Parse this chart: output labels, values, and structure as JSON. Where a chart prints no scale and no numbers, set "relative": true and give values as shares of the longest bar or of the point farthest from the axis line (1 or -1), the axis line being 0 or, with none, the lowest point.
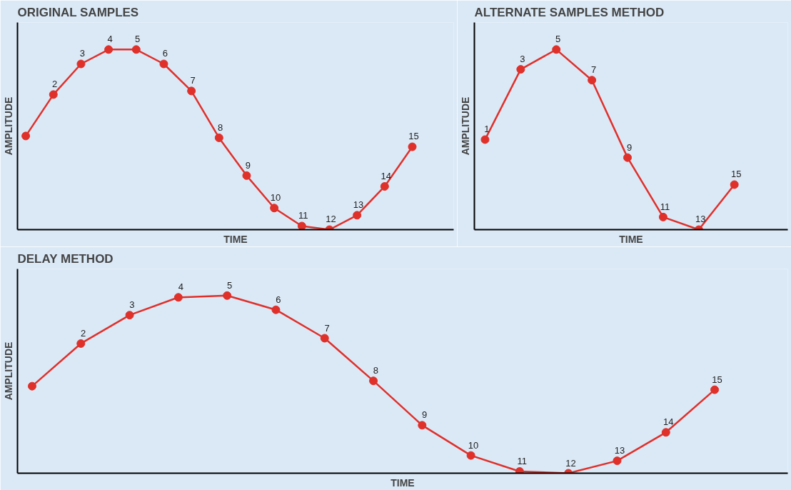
{
  "chart_data": [
    {
      "type": "line",
      "title": "ORIGINAL SAMPLES",
      "xlabel": "TIME",
      "ylabel": "AMPLITUDE",
      "relative": true,
      "marker": "circle",
      "line_style": "solid",
      "categories": [
        null,
        null,
        null,
        null,
        null,
        null,
        null,
        null,
        null,
        null,
        null,
        null,
        null,
        null,
        null
      ],
      "series": [
        {
          "color": "#e0302a",
          "values": [
            0.52,
            0.75,
            0.92,
            1.0,
            1.0,
            0.92,
            0.77,
            0.51,
            0.3,
            0.12,
            0.02,
            0.0,
            0.08,
            0.24,
            0.46
          ]
        }
      ],
      "annotations": [
        "2",
        "3",
        "4",
        "5",
        "6",
        "7",
        "8",
        "9",
        "10",
        "11",
        "12",
        "13",
        "14",
        "15"
      ]
    },
    {
      "type": "line",
      "title": "ALTERNATE SAMPLES METHOD",
      "xlabel": "TIME",
      "ylabel": "AMPLITUDE",
      "relative": true,
      "marker": "circle",
      "line_style": "solid",
      "categories": [
        null,
        null,
        null,
        null,
        null,
        null,
        null,
        null
      ],
      "series": [
        {
          "color": "#e0302a",
          "values": [
            0.5,
            0.89,
            1.0,
            0.83,
            0.4,
            0.07,
            0.0,
            0.25
          ]
        }
      ],
      "annotations": [
        "1",
        "3",
        "5",
        "7",
        "9",
        "11",
        "13",
        "15"
      ]
    },
    {
      "type": "line",
      "title": "DELAY METHOD",
      "xlabel": "TIME",
      "ylabel": "AMPLITUDE",
      "relative": true,
      "marker": "circle",
      "line_style": "solid",
      "categories": [
        null,
        null,
        null,
        null,
        null,
        null,
        null,
        null,
        null,
        null,
        null,
        null,
        null,
        null,
        null
      ],
      "series": [
        {
          "color": "#e0302a",
          "values": [
            0.49,
            0.73,
            0.89,
            0.99,
            1.0,
            0.92,
            0.76,
            0.52,
            0.27,
            0.1,
            0.01,
            0.0,
            0.07,
            0.23,
            0.47
          ]
        }
      ],
      "annotations": [
        "2",
        "3",
        "4",
        "5",
        "6",
        "7",
        "8",
        "9",
        "10",
        "11",
        "12",
        "13",
        "14",
        "15"
      ]
    }
  ]
}
